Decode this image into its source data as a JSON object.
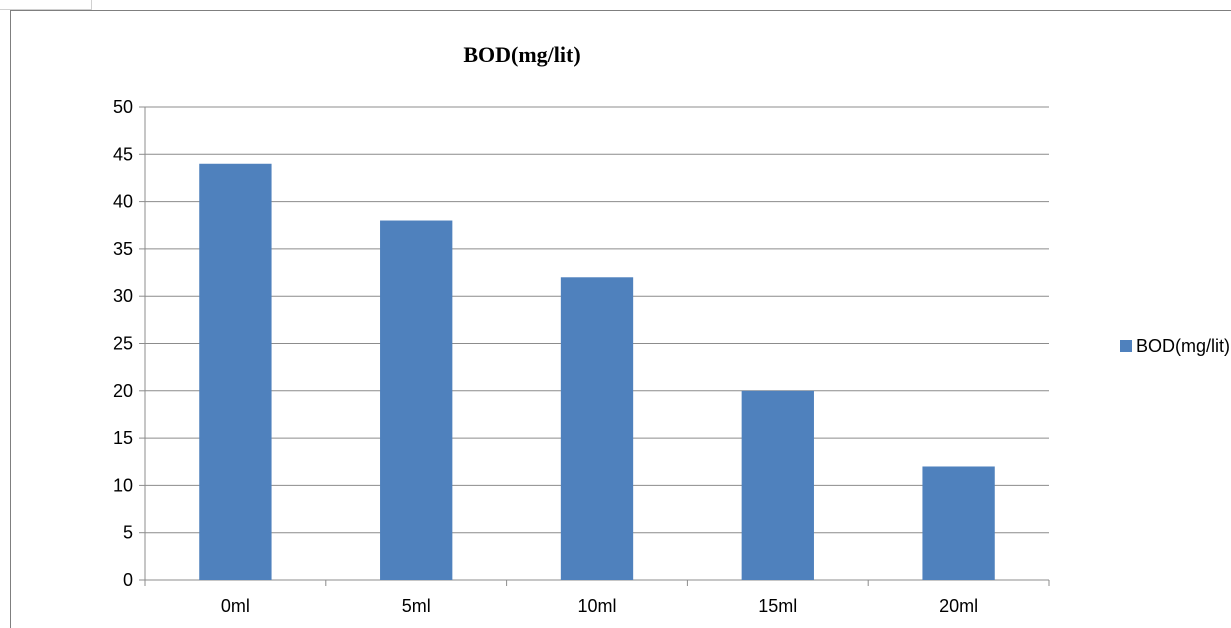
{
  "chart_data": {
    "type": "bar",
    "title": "BOD(mg/lit)",
    "categories": [
      "0ml",
      "5ml",
      "10ml",
      "15ml",
      "20ml"
    ],
    "series": [
      {
        "name": "BOD(mg/lit)",
        "values": [
          44,
          38,
          32,
          20,
          12
        ],
        "color": "#4f81bd"
      }
    ],
    "ylim": [
      0,
      50
    ],
    "yticks": [
      "0",
      "5",
      "10",
      "15",
      "20",
      "25",
      "30",
      "35",
      "40",
      "45",
      "50"
    ],
    "xlabel": "",
    "ylabel": "",
    "grid": true,
    "legend_position": "right"
  }
}
